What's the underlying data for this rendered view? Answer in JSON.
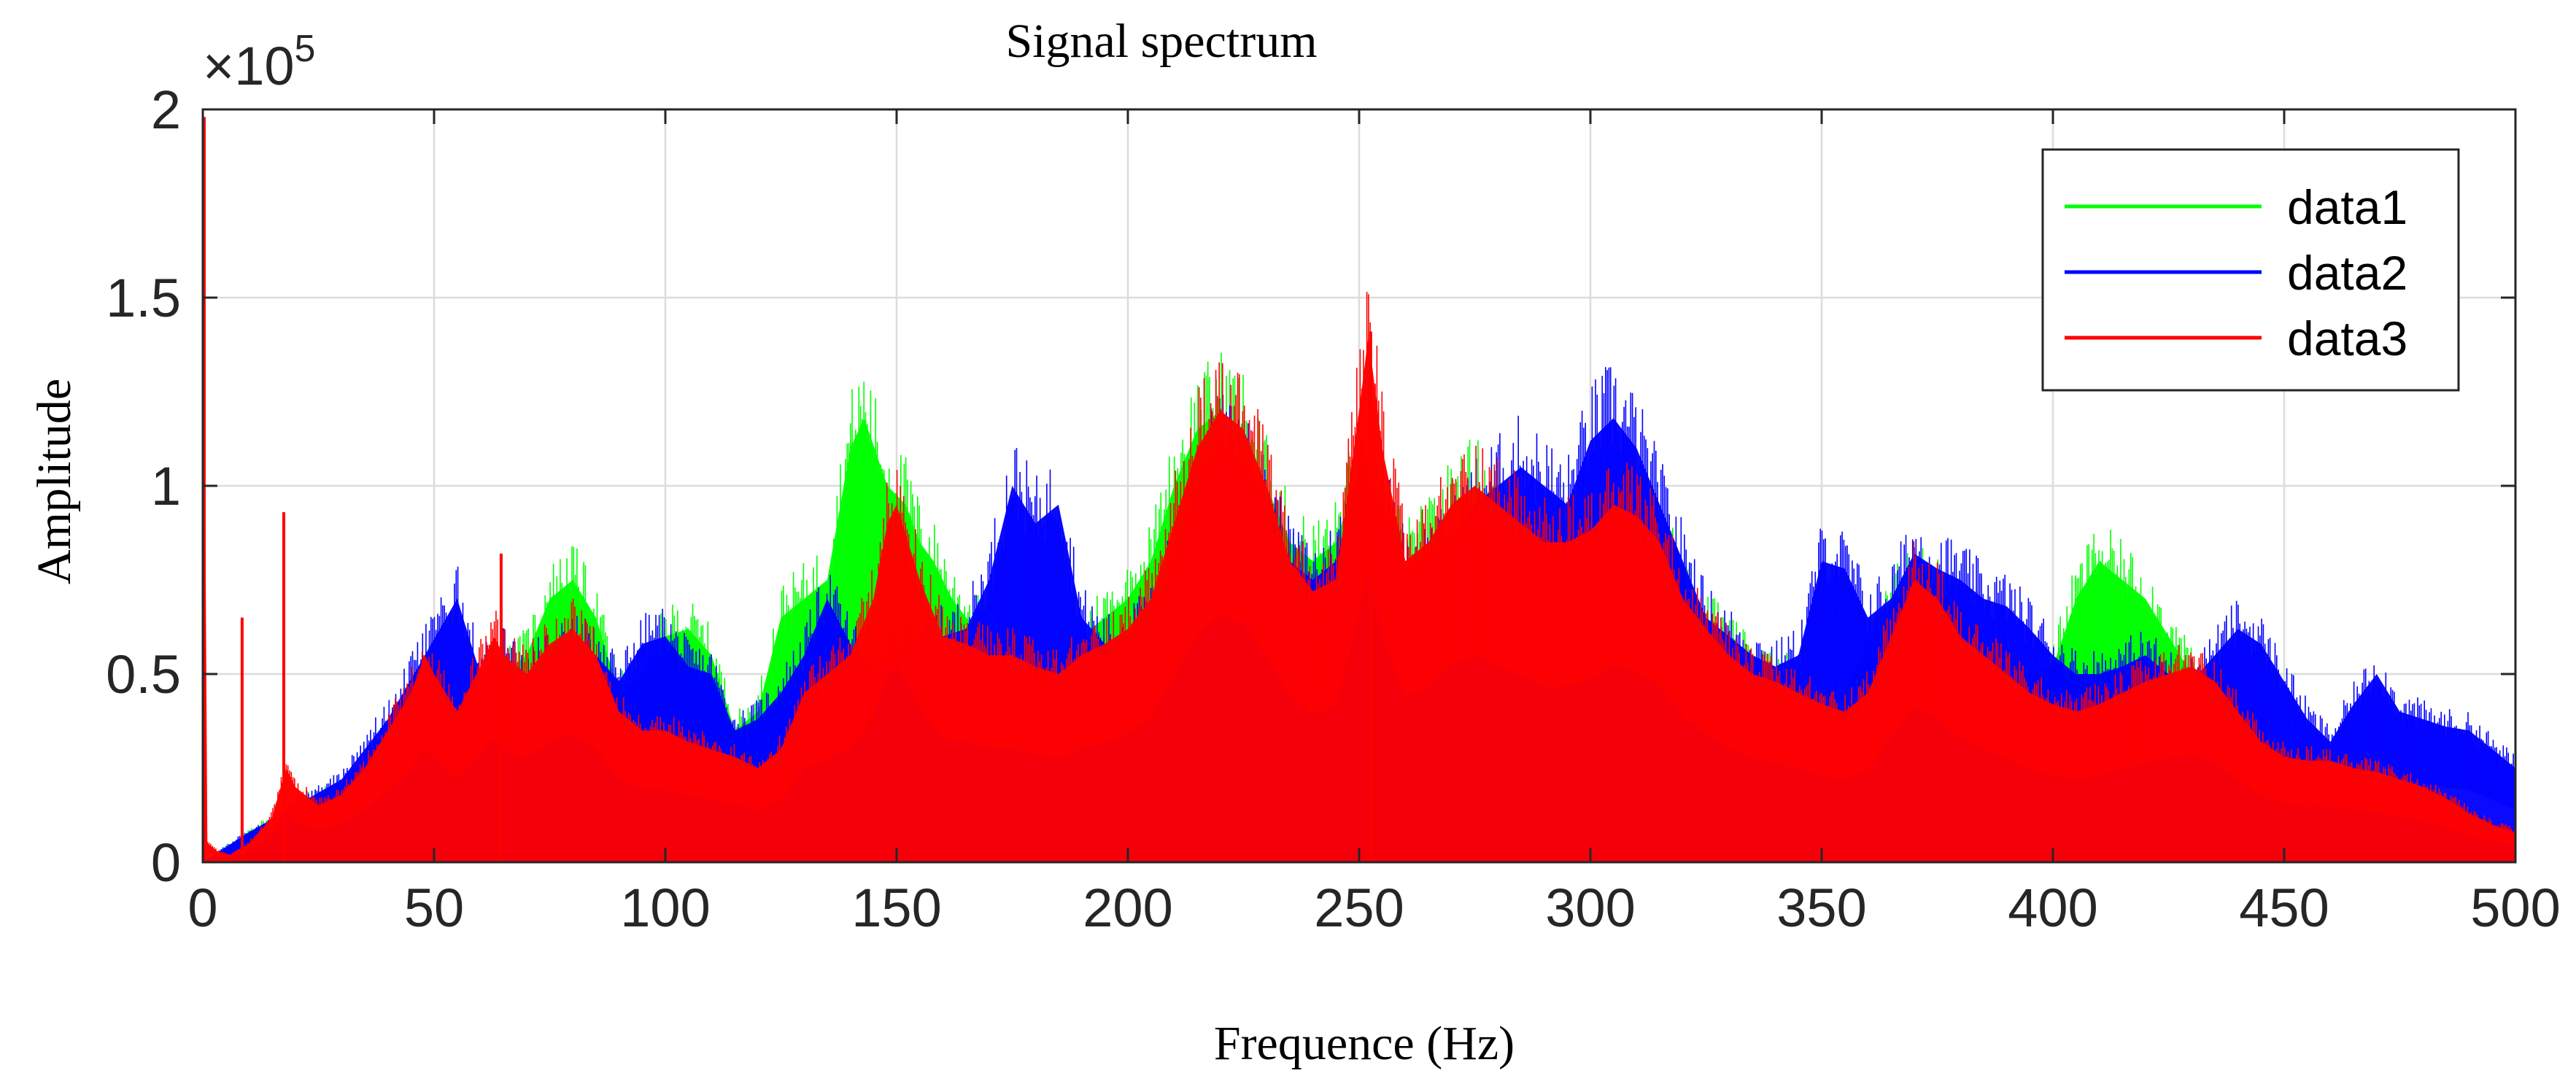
{
  "chart_data": {
    "type": "area",
    "title": "Signal spectrum",
    "xlabel": "Frequence (Hz)",
    "ylabel": "Amplitude",
    "y_exponent_label": "×10",
    "y_exponent_power": "5",
    "xlim": [
      0,
      500
    ],
    "ylim": [
      0,
      200000
    ],
    "grid": true,
    "legend_position": "top-right",
    "x_ticks": [
      0,
      50,
      100,
      150,
      200,
      250,
      300,
      350,
      400,
      450,
      500
    ],
    "x_tick_labels": [
      "0",
      "50",
      "100",
      "150",
      "200",
      "250",
      "300",
      "350",
      "400",
      "450",
      "500"
    ],
    "y_ticks": [
      0,
      50000,
      100000,
      150000,
      200000
    ],
    "y_tick_labels": [
      "0",
      "0.5",
      "1",
      "1.5",
      "2"
    ],
    "series": [
      {
        "name": "data1",
        "color": "#00ff00",
        "envelope": {
          "x": [
            0,
            5,
            10,
            20,
            30,
            40,
            48,
            55,
            60,
            65,
            70,
            75,
            80,
            85,
            90,
            95,
            100,
            105,
            110,
            115,
            120,
            125,
            130,
            135,
            140,
            143,
            148,
            152,
            155,
            158,
            162,
            165,
            170,
            175,
            180,
            185,
            190,
            195,
            200,
            205,
            210,
            215,
            220,
            225,
            230,
            235,
            240,
            245,
            250,
            253,
            255,
            260,
            265,
            270,
            275,
            280,
            285,
            290,
            295,
            300,
            305,
            310,
            315,
            320,
            325,
            330,
            335,
            340,
            345,
            350,
            355,
            360,
            365,
            370,
            375,
            380,
            385,
            390,
            395,
            400,
            405,
            410,
            415,
            420,
            425,
            430,
            435,
            440,
            445,
            450,
            455,
            460,
            465,
            470,
            475,
            480,
            485,
            490,
            495,
            500
          ],
          "y": [
            0,
            4000,
            8000,
            15000,
            20000,
            30000,
            45000,
            40000,
            35000,
            50000,
            55000,
            70000,
            75000,
            65000,
            45000,
            50000,
            60000,
            62000,
            55000,
            35000,
            40000,
            65000,
            70000,
            75000,
            110000,
            118000,
            100000,
            95000,
            85000,
            80000,
            70000,
            65000,
            60000,
            55000,
            52000,
            55000,
            60000,
            65000,
            70000,
            80000,
            100000,
            115000,
            120000,
            115000,
            100000,
            85000,
            80000,
            85000,
            105000,
            110000,
            95000,
            80000,
            85000,
            95000,
            100000,
            95000,
            85000,
            80000,
            85000,
            90000,
            100000,
            95000,
            85000,
            75000,
            65000,
            58000,
            52000,
            50000,
            48000,
            40000,
            45000,
            58000,
            68000,
            75000,
            72000,
            65000,
            60000,
            55000,
            50000,
            52000,
            70000,
            80000,
            75000,
            70000,
            60000,
            50000,
            40000,
            35000,
            30000,
            28000,
            27000,
            26000,
            25000,
            22000,
            20000,
            18000,
            15000,
            12000,
            10000,
            8000
          ]
        }
      },
      {
        "name": "data2",
        "color": "#0000ff",
        "envelope": {
          "x": [
            0,
            5,
            10,
            20,
            30,
            40,
            48,
            55,
            60,
            65,
            70,
            75,
            80,
            85,
            90,
            95,
            100,
            105,
            110,
            115,
            120,
            125,
            130,
            135,
            140,
            145,
            150,
            155,
            160,
            165,
            170,
            175,
            180,
            185,
            190,
            195,
            200,
            205,
            210,
            215,
            220,
            225,
            230,
            235,
            240,
            245,
            250,
            255,
            260,
            265,
            270,
            275,
            280,
            285,
            290,
            295,
            300,
            305,
            310,
            315,
            320,
            325,
            330,
            335,
            340,
            345,
            350,
            355,
            360,
            365,
            370,
            375,
            380,
            385,
            390,
            395,
            400,
            405,
            410,
            415,
            420,
            425,
            430,
            435,
            440,
            445,
            450,
            455,
            460,
            465,
            470,
            475,
            480,
            485,
            490,
            495,
            500
          ],
          "y": [
            0,
            4000,
            8000,
            15000,
            22000,
            38000,
            55000,
            70000,
            50000,
            55000,
            50000,
            55000,
            60000,
            55000,
            48000,
            58000,
            60000,
            52000,
            50000,
            35000,
            38000,
            45000,
            55000,
            70000,
            58000,
            50000,
            55000,
            60000,
            60000,
            62000,
            75000,
            100000,
            90000,
            95000,
            65000,
            58000,
            60000,
            65000,
            80000,
            100000,
            110000,
            105000,
            95000,
            80000,
            75000,
            80000,
            100000,
            95000,
            78000,
            80000,
            85000,
            95000,
            100000,
            105000,
            100000,
            95000,
            112000,
            118000,
            110000,
            95000,
            80000,
            65000,
            60000,
            55000,
            52000,
            55000,
            80000,
            78000,
            65000,
            70000,
            82000,
            78000,
            75000,
            70000,
            68000,
            62000,
            55000,
            50000,
            50000,
            52000,
            55000,
            50000,
            48000,
            55000,
            62000,
            58000,
            48000,
            38000,
            32000,
            42000,
            50000,
            40000,
            38000,
            36000,
            35000,
            30000,
            25000
          ]
        }
      },
      {
        "name": "data3",
        "color": "#ff0000",
        "envelope": {
          "x": [
            0,
            1,
            3,
            6,
            10,
            15,
            18,
            20,
            25,
            30,
            35,
            40,
            45,
            48,
            50,
            55,
            60,
            63,
            65,
            70,
            75,
            80,
            85,
            90,
            95,
            100,
            105,
            110,
            115,
            120,
            125,
            130,
            135,
            140,
            145,
            148,
            150,
            155,
            160,
            165,
            170,
            175,
            180,
            185,
            190,
            195,
            200,
            205,
            210,
            215,
            220,
            225,
            230,
            235,
            240,
            245,
            250,
            252,
            255,
            260,
            265,
            270,
            275,
            280,
            285,
            290,
            295,
            300,
            305,
            310,
            315,
            320,
            325,
            330,
            335,
            340,
            345,
            350,
            355,
            360,
            365,
            370,
            375,
            380,
            385,
            390,
            395,
            400,
            405,
            410,
            415,
            420,
            425,
            430,
            435,
            440,
            445,
            450,
            455,
            460,
            465,
            470,
            475,
            480,
            485,
            490,
            495,
            500
          ],
          "y": [
            198000,
            5000,
            3000,
            2000,
            5000,
            12000,
            25000,
            20000,
            15000,
            18000,
            25000,
            35000,
            45000,
            55000,
            50000,
            40000,
            52000,
            60000,
            55000,
            50000,
            58000,
            62000,
            55000,
            40000,
            35000,
            35000,
            32000,
            30000,
            28000,
            25000,
            30000,
            45000,
            50000,
            55000,
            70000,
            90000,
            95000,
            75000,
            60000,
            58000,
            55000,
            55000,
            52000,
            50000,
            55000,
            58000,
            62000,
            70000,
            90000,
            110000,
            120000,
            115000,
            100000,
            80000,
            72000,
            75000,
            120000,
            140000,
            110000,
            80000,
            85000,
            95000,
            100000,
            95000,
            90000,
            85000,
            85000,
            88000,
            95000,
            92000,
            85000,
            70000,
            62000,
            55000,
            50000,
            48000,
            45000,
            42000,
            40000,
            45000,
            60000,
            75000,
            70000,
            60000,
            55000,
            50000,
            45000,
            42000,
            40000,
            42000,
            45000,
            48000,
            50000,
            52000,
            48000,
            40000,
            32000,
            28000,
            27000,
            27000,
            25000,
            24000,
            22000,
            20000,
            17000,
            13000,
            10000,
            8000
          ]
        },
        "spikes": [
          {
            "x": 0.3,
            "y": 198000
          },
          {
            "x": 8.5,
            "y": 65000
          },
          {
            "x": 17.5,
            "y": 93000
          },
          {
            "x": 64.5,
            "y": 82000
          },
          {
            "x": 252.5,
            "y": 141000
          }
        ]
      }
    ]
  }
}
